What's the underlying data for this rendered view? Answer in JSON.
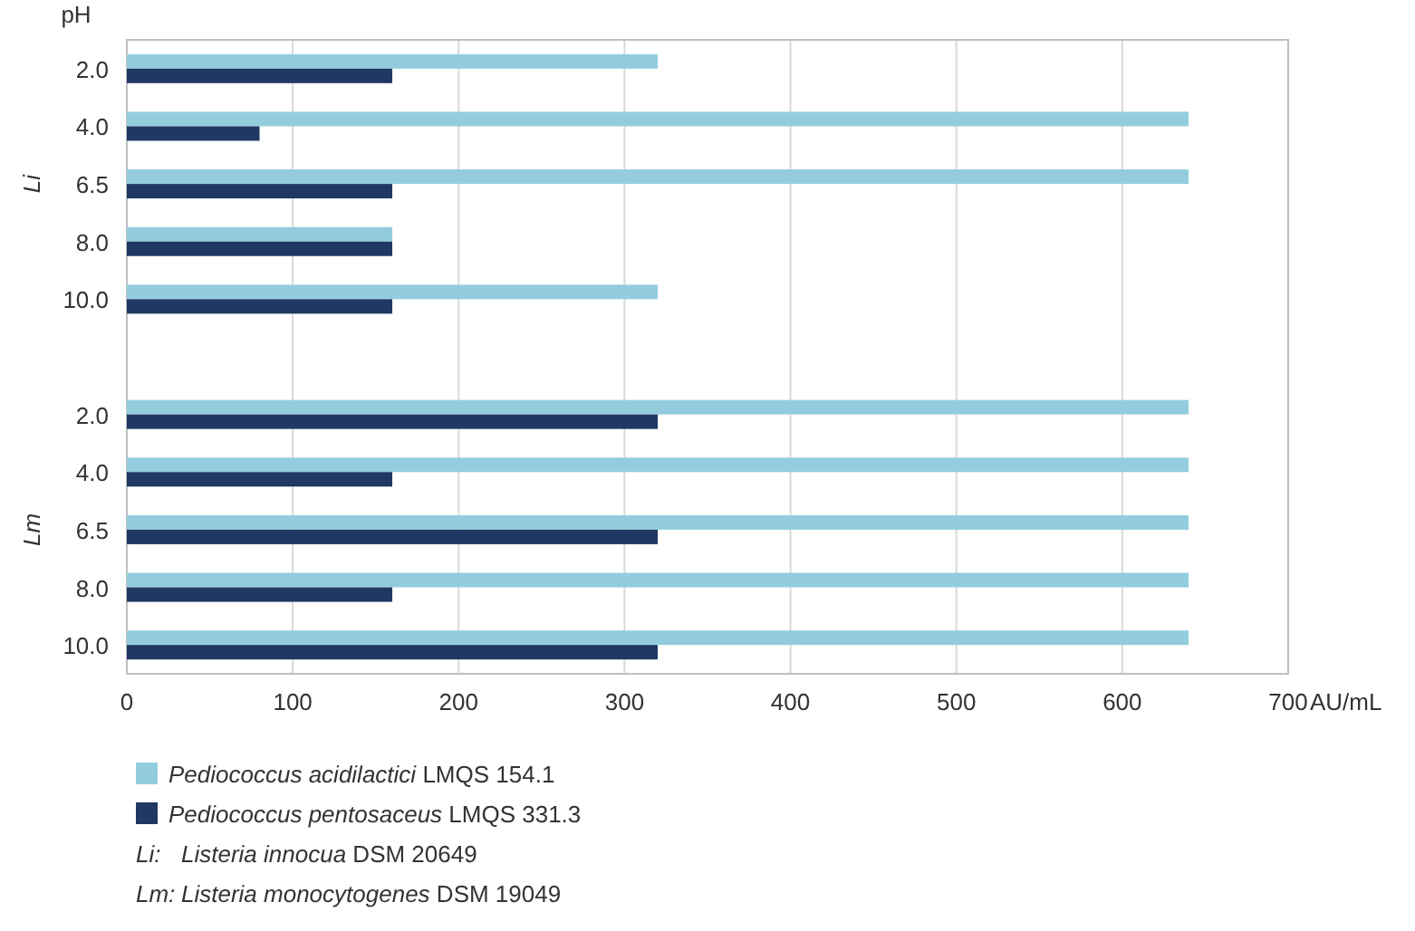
{
  "chart_data": {
    "type": "bar",
    "orientation": "horizontal",
    "ylabel": "pH",
    "xlabel": "AU/mL",
    "categories": [
      "2.0",
      "4.0",
      "6.5",
      "8.0",
      "10.0",
      null,
      "2.0",
      "4.0",
      "6.5",
      "8.0",
      "10.0"
    ],
    "series": [
      {
        "name": "Pediococcus acidilactici  LMQS 154.1",
        "color": "#93cddd",
        "values": [
          320,
          640,
          640,
          160,
          320,
          null,
          640,
          640,
          640,
          640,
          640
        ]
      },
      {
        "name": "Pediococcus pentosaceus LMQS 331.3",
        "color": "#1f3864",
        "values": [
          160,
          80,
          160,
          160,
          160,
          null,
          320,
          160,
          320,
          160,
          320
        ]
      }
    ],
    "xlim": [
      0,
      700
    ],
    "xticks": [
      0,
      100,
      200,
      300,
      400,
      500,
      600,
      700
    ],
    "grid": "x",
    "legend": "bottom",
    "annotations": [
      "Li",
      "Lm",
      "Li: Listeria innocua DSM 20649",
      "Lm: Listeria monocytogenes DSM 19049"
    ]
  }
}
